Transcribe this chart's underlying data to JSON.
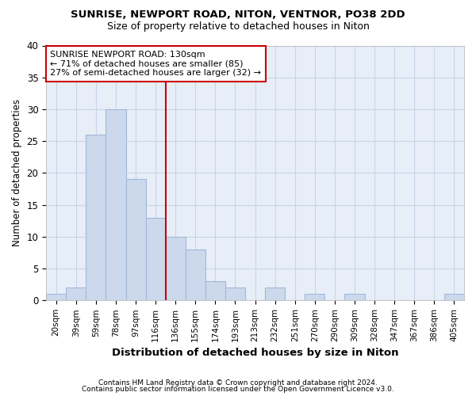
{
  "title1": "SUNRISE, NEWPORT ROAD, NITON, VENTNOR, PO38 2DD",
  "title2": "Size of property relative to detached houses in Niton",
  "xlabel": "Distribution of detached houses by size in Niton",
  "ylabel": "Number of detached properties",
  "categories": [
    "20sqm",
    "39sqm",
    "59sqm",
    "78sqm",
    "97sqm",
    "116sqm",
    "136sqm",
    "155sqm",
    "174sqm",
    "193sqm",
    "213sqm",
    "232sqm",
    "251sqm",
    "270sqm",
    "290sqm",
    "309sqm",
    "328sqm",
    "347sqm",
    "367sqm",
    "386sqm",
    "405sqm"
  ],
  "values": [
    1,
    2,
    26,
    30,
    19,
    13,
    10,
    8,
    3,
    2,
    0,
    2,
    0,
    1,
    0,
    1,
    0,
    0,
    0,
    0,
    1
  ],
  "bar_fill_color": "#ccd9ed",
  "bar_edge_color": "#a0b8d8",
  "property_line_color": "#cc0000",
  "annotation_text": "SUNRISE NEWPORT ROAD: 130sqm\n← 71% of detached houses are smaller (85)\n27% of semi-detached houses are larger (32) →",
  "annotation_box_color": "white",
  "annotation_box_edge": "#cc0000",
  "ylim": [
    0,
    40
  ],
  "yticks": [
    0,
    5,
    10,
    15,
    20,
    25,
    30,
    35,
    40
  ],
  "footer1": "Contains HM Land Registry data © Crown copyright and database right 2024.",
  "footer2": "Contains public sector information licensed under the Open Government Licence v3.0.",
  "grid_color": "#c8d4e8",
  "bg_color": "#e8eef8"
}
